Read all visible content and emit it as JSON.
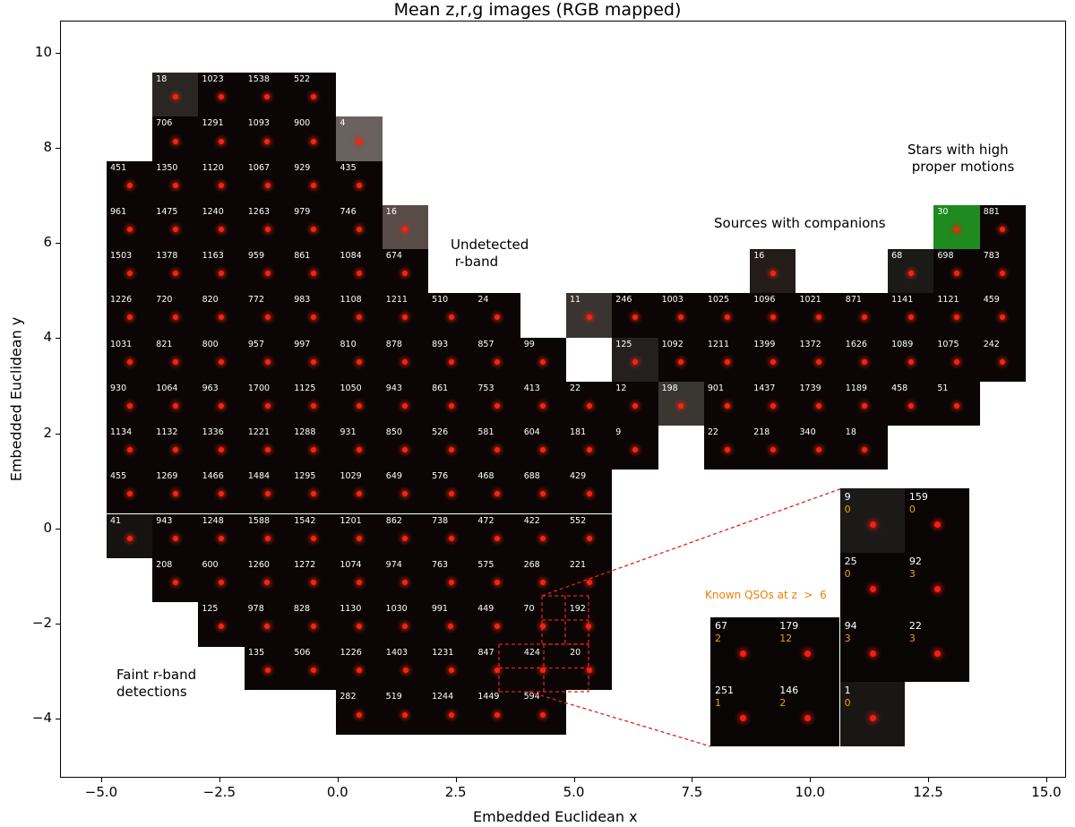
{
  "chart_data": {
    "type": "image-grid",
    "title": "Mean z,r,g images (RGB mapped)",
    "xlabel": "Embedded Euclidean x",
    "ylabel": "Embedded Euclidean y",
    "xlim": [
      -5.6,
      15.7
    ],
    "ylim": [
      -5.3,
      10.7
    ],
    "xticks": [
      "−5.0",
      "−2.5",
      "0.0",
      "2.5",
      "5.0",
      "7.5",
      "10.0",
      "12.5",
      "15.0"
    ],
    "xtick_values": [
      -5,
      -2.5,
      0,
      2.5,
      5,
      7.5,
      10,
      12.5,
      15
    ],
    "yticks": [
      "−4",
      "−2",
      "0",
      "2",
      "4",
      "6",
      "8",
      "10"
    ],
    "ytick_values": [
      -4,
      -2,
      0,
      2,
      4,
      6,
      8,
      10
    ],
    "grid": false,
    "rows": [
      {
        "y": 9.12,
        "x_start": -3.43,
        "cells": [
          {
            "id": "18",
            "bg": "#2a2622"
          },
          "1023",
          "1538",
          "522"
        ]
      },
      {
        "y": 8.19,
        "x_start": -3.43,
        "cells": [
          "706",
          "1291",
          "1093",
          "900",
          {
            "id": "4",
            "bg": "#6a625e"
          }
        ]
      },
      {
        "y": 7.26,
        "x_start": -4.4,
        "cells": [
          "451",
          "1350",
          "1120",
          "1067",
          "929",
          "435"
        ]
      },
      {
        "y": 6.34,
        "x_start": -4.4,
        "cells": [
          "961",
          "1475",
          "1240",
          "1263",
          "979",
          "746",
          {
            "id": "16",
            "bg": "#5a4c48"
          },
          null,
          null,
          null,
          null,
          null,
          null,
          null,
          null,
          null,
          null,
          null,
          {
            "id": "30",
            "bg": "#1f8a1f"
          },
          "881"
        ]
      },
      {
        "y": 5.41,
        "x_start": -4.4,
        "cells": [
          "1503",
          "1378",
          "1163",
          "959",
          "861",
          "1084",
          "674",
          null,
          null,
          null,
          null,
          null,
          null,
          null,
          {
            "id": "16",
            "bg": "#241c18"
          },
          null,
          null,
          {
            "id": "68",
            "bg": "#1c1a16"
          },
          "698",
          "783"
        ]
      },
      {
        "y": 4.48,
        "x_start": -4.4,
        "cells": [
          "1226",
          "720",
          "820",
          "772",
          "983",
          "1108",
          "1211",
          "510",
          "24",
          null,
          {
            "id": "11",
            "bg": "#3a3430"
          },
          "246",
          "1003",
          "1025",
          "1096",
          "1021",
          "871",
          "1141",
          "1121",
          "459"
        ]
      },
      {
        "y": 3.55,
        "x_start": -4.4,
        "cells": [
          "1031",
          "821",
          "800",
          "957",
          "997",
          "810",
          "878",
          "893",
          "857",
          "99",
          null,
          {
            "id": "125",
            "bg": "#242020"
          },
          "1092",
          "1211",
          "1399",
          "1372",
          "1626",
          "1089",
          "1075",
          "242"
        ]
      },
      {
        "y": 2.62,
        "x_start": -4.4,
        "cells": [
          "930",
          "1064",
          "963",
          "1700",
          "1125",
          "1050",
          "943",
          "861",
          "753",
          "413",
          "22",
          "12",
          {
            "id": "198",
            "bg": "#3a3632"
          },
          "901",
          "1437",
          "1739",
          "1189",
          "458",
          "51"
        ]
      },
      {
        "y": 1.7,
        "x_start": -4.4,
        "cells": [
          "1134",
          "1132",
          "1336",
          "1221",
          "1288",
          "931",
          "850",
          "526",
          "581",
          "604",
          "181",
          "9",
          null,
          "22",
          "218",
          "340",
          "18"
        ]
      },
      {
        "y": 0.77,
        "x_start": -4.4,
        "cells": [
          "455",
          "1269",
          "1466",
          "1484",
          "1295",
          "1029",
          "649",
          "576",
          "468",
          "688",
          "429"
        ]
      },
      {
        "y": -0.16,
        "x_start": -4.4,
        "cells": [
          {
            "id": "41",
            "bg": "#161210"
          },
          "943",
          "1248",
          "1588",
          "1542",
          "1201",
          "862",
          "738",
          "472",
          "422",
          "552"
        ]
      },
      {
        "y": -1.09,
        "x_start": -3.43,
        "cells": [
          "208",
          "600",
          "1260",
          "1272",
          "1074",
          "974",
          "763",
          "575",
          "268",
          "221"
        ]
      },
      {
        "y": -2.02,
        "x_start": -2.46,
        "cells": [
          "125",
          "978",
          "828",
          "1130",
          "1030",
          "991",
          "449",
          "70",
          "192"
        ]
      },
      {
        "y": -2.94,
        "x_start": -1.48,
        "cells": [
          "135",
          "506",
          "1226",
          "1403",
          "1231",
          "847",
          "424",
          "20"
        ]
      },
      {
        "y": -3.87,
        "x_start": 0.46,
        "cells": [
          "282",
          "519",
          "1244",
          "1449",
          "594"
        ]
      }
    ],
    "inset": {
      "label": "Known QSOs at z  >  6",
      "rows": [
        [
          null,
          null,
          {
            "id": "9",
            "count": "0",
            "bg": "#1c1a18"
          },
          {
            "id": "159",
            "count": "0"
          }
        ],
        [
          null,
          null,
          {
            "id": "25",
            "count": "0"
          },
          {
            "id": "92",
            "count": "3"
          }
        ],
        [
          {
            "id": "67",
            "count": "2"
          },
          {
            "id": "179",
            "count": "12"
          },
          {
            "id": "94",
            "count": "3"
          },
          {
            "id": "22",
            "count": "3"
          }
        ],
        [
          {
            "id": "251",
            "count": "1"
          },
          {
            "id": "146",
            "count": "2"
          },
          {
            "id": "1",
            "count": "0",
            "bg": "#1a1614"
          },
          null
        ]
      ]
    },
    "annotations": {
      "undetected": "Undetected\n r-band",
      "companions": "Sources with companions",
      "stars": "Stars with high\n proper motions",
      "faint": "Faint r-band\ndetections"
    },
    "colors": {
      "tile_bg": "#0b0605",
      "source": "#ff2010",
      "qso_count": "#f0a000",
      "qso_label": "#f08000",
      "zoom_lines": "#e02020"
    }
  }
}
